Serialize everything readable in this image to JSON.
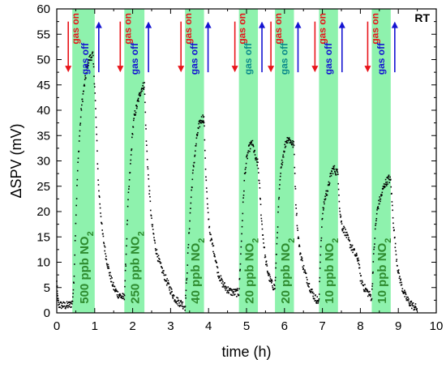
{
  "chart_data": {
    "type": "scatter",
    "title": "",
    "xlabel": "time (h)",
    "ylabel": "ΔSPV (mV)",
    "xlim": [
      0,
      10
    ],
    "ylim": [
      0,
      60
    ],
    "xticks": [
      "0",
      "1",
      "2",
      "3",
      "4",
      "5",
      "6",
      "7",
      "8",
      "9",
      "10"
    ],
    "yticks": [
      "0",
      "5",
      "10",
      "15",
      "20",
      "25",
      "30",
      "35",
      "40",
      "45",
      "50",
      "55",
      "60"
    ],
    "corner_label": "RT",
    "gas_on_label": "gas on",
    "gas_off_label": "gas off",
    "colors": {
      "data": "#000000",
      "pulse_fill": "#8ef2ad",
      "pulse_label": "#2e8b2e",
      "gas_on": "#e8141a",
      "gas_off": "#1414d2",
      "gas_off_alt": "#0b8a8a"
    },
    "pulses": [
      {
        "on": 0.41,
        "off": 1.0,
        "label": "500 ppb NO",
        "subscript": "2",
        "off_color": "blue"
      },
      {
        "on": 1.78,
        "off": 2.31,
        "label": "250 ppb NO",
        "subscript": "2",
        "off_color": "blue"
      },
      {
        "on": 3.38,
        "off": 3.88,
        "label": "40 ppb NO",
        "subscript": "2",
        "off_color": "blue"
      },
      {
        "on": 4.8,
        "off": 5.3,
        "label": "20 ppb NO",
        "subscript": "2",
        "off_color": "teal"
      },
      {
        "on": 5.75,
        "off": 6.25,
        "label": "20 ppb NO",
        "subscript": "2",
        "off_color": "teal"
      },
      {
        "on": 6.91,
        "off": 7.41,
        "label": "10 ppb NO",
        "subscript": "2",
        "off_color": "blue"
      },
      {
        "on": 8.3,
        "off": 8.8,
        "label": "10 ppb NO",
        "subscript": "2",
        "off_color": "blue"
      }
    ],
    "series": [
      {
        "points": [
          [
            0.0,
            6.0
          ],
          [
            0.02,
            3.0
          ],
          [
            0.05,
            1.6
          ],
          [
            0.15,
            1.5
          ],
          [
            0.25,
            1.4
          ],
          [
            0.35,
            1.6
          ],
          [
            0.41,
            2.0
          ],
          [
            0.45,
            6.0
          ],
          [
            0.5,
            18.0
          ],
          [
            0.55,
            28.0
          ],
          [
            0.6,
            35.0
          ],
          [
            0.65,
            40.5
          ],
          [
            0.7,
            43.5
          ],
          [
            0.75,
            46.0
          ],
          [
            0.8,
            48.5
          ],
          [
            0.85,
            50.0
          ],
          [
            0.9,
            50.5
          ],
          [
            0.95,
            51.0
          ],
          [
            1.0,
            45.0
          ],
          [
            1.05,
            35.0
          ],
          [
            1.1,
            25.0
          ],
          [
            1.2,
            16.0
          ],
          [
            1.3,
            11.0
          ],
          [
            1.4,
            7.5
          ],
          [
            1.5,
            5.0
          ],
          [
            1.6,
            3.8
          ],
          [
            1.7,
            3.2
          ],
          [
            1.78,
            3.0
          ],
          [
            1.82,
            10.0
          ],
          [
            1.88,
            22.0
          ],
          [
            1.95,
            30.0
          ],
          [
            2.0,
            36.0
          ],
          [
            2.05,
            39.0
          ],
          [
            2.1,
            40.5
          ],
          [
            2.15,
            42.0
          ],
          [
            2.2,
            43.5
          ],
          [
            2.25,
            44.5
          ],
          [
            2.31,
            45.0
          ],
          [
            2.36,
            34.0
          ],
          [
            2.42,
            26.0
          ],
          [
            2.5,
            18.0
          ],
          [
            2.6,
            13.0
          ],
          [
            2.7,
            10.0
          ],
          [
            2.8,
            8.0
          ],
          [
            2.9,
            6.2
          ],
          [
            3.0,
            4.5
          ],
          [
            3.1,
            3.0
          ],
          [
            3.2,
            2.2
          ],
          [
            3.3,
            1.8
          ],
          [
            3.38,
            1.2
          ],
          [
            3.42,
            6.0
          ],
          [
            3.48,
            15.0
          ],
          [
            3.55,
            24.0
          ],
          [
            3.6,
            28.5
          ],
          [
            3.65,
            32.0
          ],
          [
            3.7,
            35.0
          ],
          [
            3.75,
            37.0
          ],
          [
            3.8,
            38.0
          ],
          [
            3.85,
            38.5
          ],
          [
            3.88,
            38.0
          ],
          [
            3.93,
            27.0
          ],
          [
            3.98,
            20.0
          ],
          [
            4.05,
            15.0
          ],
          [
            4.15,
            12.0
          ],
          [
            4.25,
            8.0
          ],
          [
            4.35,
            6.0
          ],
          [
            4.45,
            5.0
          ],
          [
            4.55,
            4.3
          ],
          [
            4.65,
            4.0
          ],
          [
            4.75,
            4.0
          ],
          [
            4.8,
            4.0
          ],
          [
            4.84,
            10.0
          ],
          [
            4.9,
            20.0
          ],
          [
            4.95,
            27.0
          ],
          [
            5.0,
            30.0
          ],
          [
            5.05,
            32.0
          ],
          [
            5.1,
            33.0
          ],
          [
            5.15,
            33.5
          ],
          [
            5.2,
            32.0
          ],
          [
            5.25,
            30.0
          ],
          [
            5.3,
            29.5
          ],
          [
            5.35,
            24.0
          ],
          [
            5.4,
            18.0
          ],
          [
            5.45,
            14.0
          ],
          [
            5.5,
            10.5
          ],
          [
            5.55,
            8.5
          ],
          [
            5.6,
            7.0
          ],
          [
            5.65,
            6.0
          ],
          [
            5.7,
            5.3
          ],
          [
            5.75,
            5.0
          ],
          [
            5.79,
            12.0
          ],
          [
            5.85,
            22.0
          ],
          [
            5.9,
            27.5
          ],
          [
            5.95,
            30.5
          ],
          [
            6.0,
            32.5
          ],
          [
            6.05,
            34.0
          ],
          [
            6.1,
            34.5
          ],
          [
            6.15,
            34.0
          ],
          [
            6.2,
            33.5
          ],
          [
            6.25,
            33.0
          ],
          [
            6.3,
            22.0
          ],
          [
            6.35,
            16.0
          ],
          [
            6.4,
            12.5
          ],
          [
            6.5,
            9.0
          ],
          [
            6.6,
            6.5
          ],
          [
            6.7,
            4.5
          ],
          [
            6.8,
            3.0
          ],
          [
            6.91,
            2.2
          ],
          [
            6.95,
            12.0
          ],
          [
            7.0,
            19.0
          ],
          [
            7.05,
            22.0
          ],
          [
            7.1,
            23.5
          ],
          [
            7.15,
            24.5
          ],
          [
            7.2,
            26.5
          ],
          [
            7.25,
            28.0
          ],
          [
            7.3,
            28.5
          ],
          [
            7.35,
            28.0
          ],
          [
            7.41,
            27.5
          ],
          [
            7.46,
            20.0
          ],
          [
            7.52,
            17.0
          ],
          [
            7.6,
            16.0
          ],
          [
            7.7,
            14.0
          ],
          [
            7.8,
            12.5
          ],
          [
            7.9,
            11.0
          ],
          [
            7.95,
            10.5
          ],
          [
            8.0,
            7.0
          ],
          [
            8.1,
            5.0
          ],
          [
            8.2,
            4.0
          ],
          [
            8.3,
            3.0
          ],
          [
            8.34,
            10.0
          ],
          [
            8.4,
            17.0
          ],
          [
            8.45,
            20.5
          ],
          [
            8.5,
            22.0
          ],
          [
            8.55,
            23.0
          ],
          [
            8.6,
            24.5
          ],
          [
            8.65,
            25.5
          ],
          [
            8.7,
            26.0
          ],
          [
            8.75,
            26.5
          ],
          [
            8.8,
            26.0
          ],
          [
            8.85,
            20.0
          ],
          [
            8.9,
            15.0
          ],
          [
            8.95,
            11.0
          ],
          [
            9.0,
            8.0
          ],
          [
            9.1,
            5.0
          ],
          [
            9.2,
            3.0
          ],
          [
            9.3,
            2.0
          ],
          [
            9.4,
            1.3
          ],
          [
            9.5,
            0.8
          ]
        ]
      }
    ]
  }
}
